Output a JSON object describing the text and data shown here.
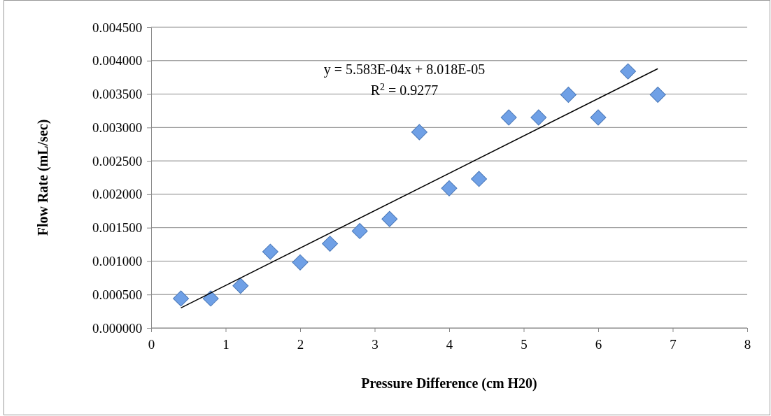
{
  "chart_data": {
    "type": "scatter",
    "xlabel": "Pressure Difference (cm H20)",
    "ylabel": "Flow Rate (mL/sec)",
    "xlim": [
      0,
      8
    ],
    "xticks": [
      0,
      1,
      2,
      3,
      4,
      5,
      6,
      7,
      8
    ],
    "ylim": [
      0,
      0.0045
    ],
    "yticks": [
      {
        "value": 0,
        "label": "0.000000"
      },
      {
        "value": 0.0005,
        "label": "0.000500"
      },
      {
        "value": 0.001,
        "label": "0.001000"
      },
      {
        "value": 0.0015,
        "label": "0.001500"
      },
      {
        "value": 0.002,
        "label": "0.002000"
      },
      {
        "value": 0.0025,
        "label": "0.002500"
      },
      {
        "value": 0.003,
        "label": "0.003000"
      },
      {
        "value": 0.0035,
        "label": "0.003500"
      },
      {
        "value": 0.004,
        "label": "0.004000"
      },
      {
        "value": 0.0045,
        "label": "0.004500"
      }
    ],
    "grid": "y",
    "marker": "diamond",
    "annotations": [
      "y = 5.583E-04x + 8.018E-05",
      "R$^{2}$ = 0.9277"
    ],
    "series": [
      {
        "color": "#6fa0e6",
        "x": [
          0.4,
          0.8,
          1.2,
          1.6,
          2.0,
          2.4,
          2.8,
          3.2,
          3.6,
          4.0,
          4.4,
          4.8,
          5.2,
          5.6,
          6.0,
          6.4,
          6.8
        ],
        "values": [
          0.00044,
          0.00044,
          0.00063,
          0.00114,
          0.00098,
          0.00126,
          0.00145,
          0.00163,
          0.00293,
          0.00209,
          0.00223,
          0.00315,
          0.00315,
          0.00349,
          0.00315,
          0.00384,
          0.00349
        ]
      },
      {
        "type": "line",
        "marker": "none",
        "color": "#000000",
        "x": [
          0.4,
          6.8
        ],
        "values": [
          0.0003,
          0.00388
        ]
      }
    ]
  }
}
